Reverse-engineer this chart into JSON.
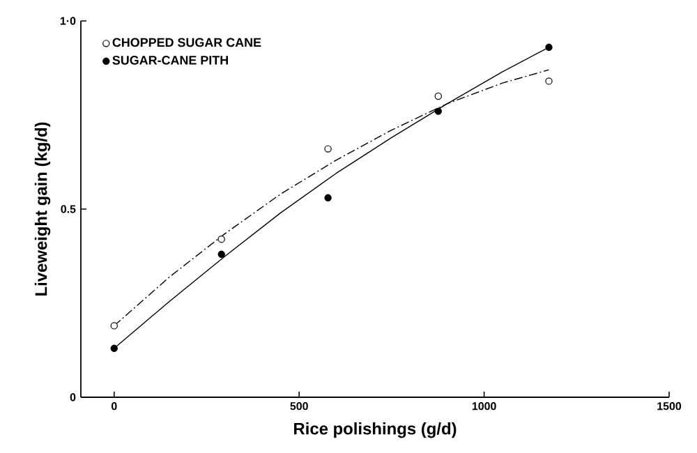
{
  "chart_data": {
    "type": "scatter",
    "xlabel": "Rice  polishings  (g/d)",
    "ylabel": "Liveweight  gain  (kg/d)",
    "x": [
      0,
      290,
      578,
      876,
      1175
    ],
    "series": [
      {
        "name": "CHOPPED SUGAR CANE",
        "color": "#ffffff",
        "marker": "circle",
        "values": [
          0.19,
          0.42,
          0.66,
          0.8,
          0.84
        ]
      },
      {
        "name": "SUGAR-CANE PITH",
        "color": "#000000",
        "marker": "circle",
        "values": [
          0.13,
          0.38,
          0.53,
          0.76,
          0.93
        ]
      },
      {
        "type": "line",
        "color": "#000000",
        "line_style": "dashed",
        "marker": "none",
        "x": [
          0,
          150,
          300,
          450,
          600,
          750,
          900,
          1050,
          1175
        ],
        "values": [
          0.19,
          0.32,
          0.435,
          0.54,
          0.63,
          0.71,
          0.78,
          0.835,
          0.87
        ]
      },
      {
        "type": "line",
        "color": "#000000",
        "line_style": "solid",
        "marker": "none",
        "x": [
          0,
          150,
          300,
          450,
          600,
          750,
          900,
          1050,
          1175
        ],
        "values": [
          0.13,
          0.255,
          0.375,
          0.49,
          0.595,
          0.69,
          0.78,
          0.865,
          0.93
        ]
      }
    ],
    "xlim": [
      -90,
      1500
    ],
    "xticks": [
      0,
      500,
      1000,
      1500
    ],
    "ylim": [
      0,
      1.0
    ],
    "yticks": [
      0,
      0.5,
      {
        "value": 1.0,
        "label": "1·0"
      }
    ],
    "grid": false,
    "legend": "top left"
  }
}
